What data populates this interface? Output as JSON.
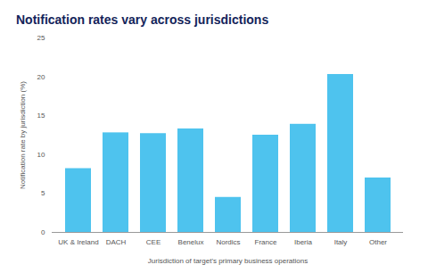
{
  "chart_data": {
    "type": "bar",
    "title": "Notification rates vary across jurisdictions",
    "x_label": "Jurisdiction of target's primary business operations",
    "y_label": "Notification rate by jurisdiction (%)",
    "categories": [
      "UK & Ireland",
      "DACH",
      "CEE",
      "Benelux",
      "Nordics",
      "France",
      "Iberia",
      "Italy",
      "Other"
    ],
    "values": [
      8.2,
      12.8,
      12.7,
      13.3,
      4.5,
      12.5,
      13.9,
      20.3,
      7.0
    ],
    "color": "#4ec3ee",
    "ylim": [
      0,
      25
    ],
    "yticks": [
      0,
      5,
      10,
      15,
      20,
      25
    ],
    "grid": false
  }
}
